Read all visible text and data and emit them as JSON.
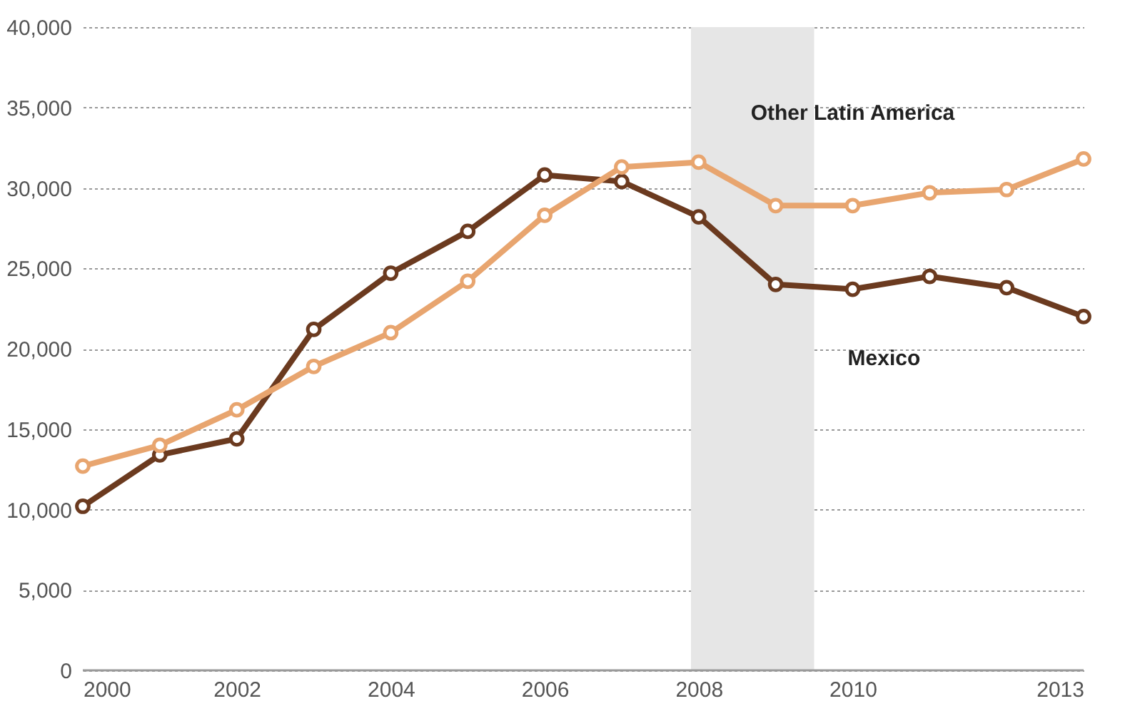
{
  "chart_data": {
    "type": "line",
    "x": [
      2000,
      2001,
      2002,
      2003,
      2004,
      2005,
      2006,
      2007,
      2008,
      2009,
      2010,
      2011,
      2012,
      2013
    ],
    "series": [
      {
        "name": "Mexico",
        "color": "#6b3a1f",
        "values": [
          10200,
          13400,
          14400,
          21200,
          24700,
          27300,
          30800,
          30400,
          28200,
          24000,
          23700,
          24500,
          23800,
          22000
        ]
      },
      {
        "name": "Other Latin America",
        "color": "#e8a56f",
        "values": [
          12700,
          14000,
          16200,
          18900,
          21000,
          24200,
          28300,
          31300,
          31600,
          28900,
          28900,
          29700,
          29900,
          31800
        ]
      }
    ],
    "xlim": [
      2000,
      2013
    ],
    "xticks": [
      2000,
      2002,
      2004,
      2006,
      2008,
      2010,
      2013
    ],
    "ylim": [
      0,
      40000
    ],
    "yticks": [
      0,
      {
        "value": 5000,
        "label": "5,000"
      },
      {
        "value": 10000,
        "label": "10,000"
      },
      {
        "value": 15000,
        "label": "15,000"
      },
      {
        "value": 20000,
        "label": "20,000"
      },
      {
        "value": 25000,
        "label": "25,000"
      },
      {
        "value": 30000,
        "label": "30,000"
      },
      {
        "value": 35000,
        "label": "35,000"
      },
      {
        "value": 40000,
        "label": "40,000"
      }
    ],
    "bands": [
      {
        "axis": "x",
        "from": 2007.9,
        "to": 2009.5,
        "color": "#e6e6e6"
      }
    ],
    "grid": "y",
    "legend": false,
    "marker": "circle",
    "line_style": "solid"
  }
}
